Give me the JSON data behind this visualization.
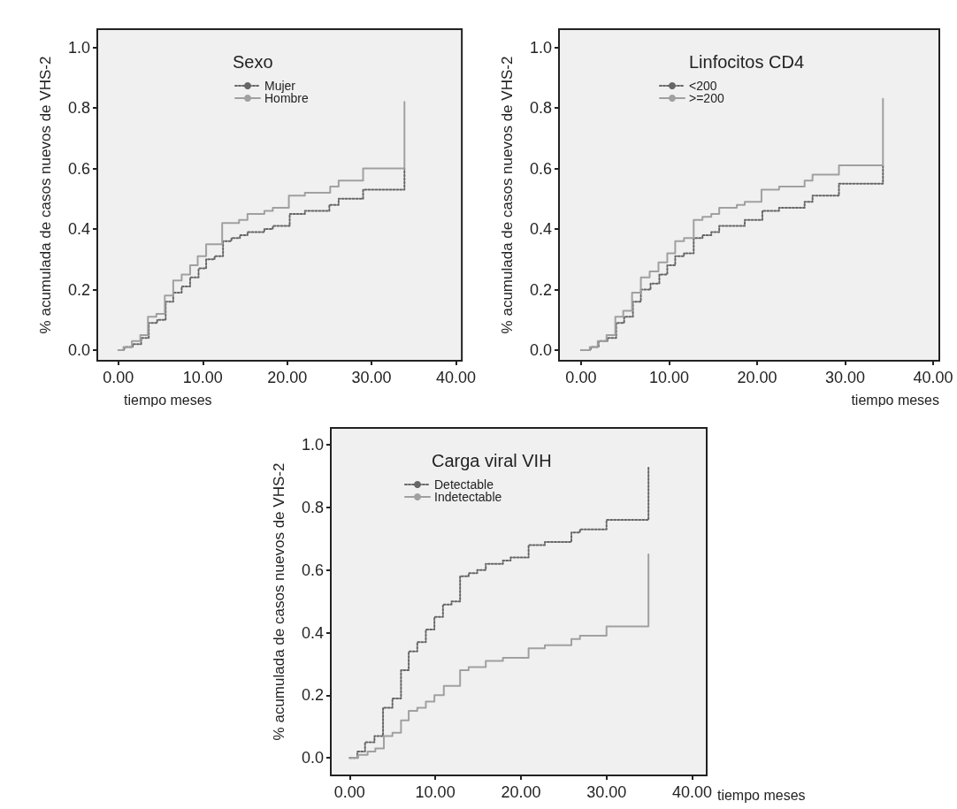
{
  "chart_data": [
    {
      "type": "step",
      "legend_title": "Sexo",
      "xlabel": "tiempo meses",
      "ylabel": "% acumulada de casos nuevos de VHS-2",
      "legend": "top",
      "grid": false,
      "xlim": [
        -2.5,
        40.7
      ],
      "ylim": [
        -0.035,
        1.06
      ],
      "xticks": [
        {
          "value": 0,
          "label": "0.00"
        },
        {
          "value": 10,
          "label": "10.00"
        },
        {
          "value": 20,
          "label": "20.00"
        },
        {
          "value": 30,
          "label": "30.00"
        },
        {
          "value": 40,
          "label": "40.00"
        }
      ],
      "yticks": [
        {
          "value": 0,
          "label": "0.0"
        },
        {
          "value": 0.2,
          "label": "0.2"
        },
        {
          "value": 0.4,
          "label": "0.4"
        },
        {
          "value": 0.6,
          "label": "0.6"
        },
        {
          "value": 0.8,
          "label": "0.8"
        },
        {
          "value": 1,
          "label": "1.0"
        }
      ],
      "series": [
        {
          "name": "Mujer",
          "color": "#666666",
          "line_style": "dotted",
          "x": [
            0,
            0.7,
            1.7,
            2.7,
            3.6,
            4.6,
            5.6,
            6.5,
            7.5,
            8.5,
            9.5,
            10.4,
            11.4,
            12.4,
            13.4,
            14.4,
            15.3,
            17.3,
            18.3,
            20.3,
            22.1,
            25.0,
            26.1,
            29.0,
            33.9,
            33.9
          ],
          "values": [
            0,
            0.01,
            0.02,
            0.04,
            0.09,
            0.1,
            0.16,
            0.19,
            0.21,
            0.24,
            0.27,
            0.3,
            0.31,
            0.36,
            0.37,
            0.38,
            0.39,
            0.4,
            0.41,
            0.45,
            0.46,
            0.48,
            0.5,
            0.53,
            0.53,
            0.6
          ]
        },
        {
          "name": "Hombre",
          "color": "#a0a0a0",
          "line_style": "solid",
          "x": [
            0,
            0.6,
            1.6,
            2.6,
            3.5,
            4.5,
            5.5,
            6.5,
            7.5,
            8.5,
            9.4,
            10.4,
            11.4,
            12.3,
            13.3,
            14.3,
            15.3,
            17.3,
            18.3,
            20.2,
            22.1,
            25.1,
            26.1,
            29.0,
            33.9,
            33.9
          ],
          "values": [
            0,
            0.01,
            0.03,
            0.05,
            0.11,
            0.12,
            0.18,
            0.23,
            0.25,
            0.28,
            0.31,
            0.35,
            0.35,
            0.42,
            0.42,
            0.43,
            0.45,
            0.46,
            0.47,
            0.51,
            0.52,
            0.54,
            0.56,
            0.6,
            0.6,
            0.82
          ]
        }
      ]
    },
    {
      "type": "step",
      "legend_title": "Linfocitos CD4",
      "xlabel": "tiempo meses",
      "ylabel": "% acumulada de casos nuevos de VHS-2",
      "legend": "top",
      "grid": false,
      "xlim": [
        -2.5,
        40.7
      ],
      "ylim": [
        -0.035,
        1.06
      ],
      "xticks": [
        {
          "value": 0,
          "label": "0.00"
        },
        {
          "value": 10,
          "label": "10.00"
        },
        {
          "value": 20,
          "label": "20.00"
        },
        {
          "value": 30,
          "label": "30.00"
        },
        {
          "value": 40,
          "label": "40.00"
        }
      ],
      "yticks": [
        {
          "value": 0,
          "label": "0.0"
        },
        {
          "value": 0.2,
          "label": "0.2"
        },
        {
          "value": 0.4,
          "label": "0.4"
        },
        {
          "value": 0.6,
          "label": "0.6"
        },
        {
          "value": 0.8,
          "label": "0.8"
        },
        {
          "value": 1,
          "label": "1.0"
        }
      ],
      "series": [
        {
          "name": "<200",
          "color": "#666666",
          "line_style": "dotted",
          "x": [
            0,
            1.1,
            2.0,
            3.0,
            4.0,
            4.9,
            5.9,
            6.8,
            7.9,
            8.9,
            9.8,
            10.7,
            11.7,
            12.8,
            13.8,
            14.8,
            15.7,
            17.7,
            18.6,
            20.6,
            22.5,
            25.4,
            26.3,
            29.3,
            34.3,
            34.3
          ],
          "values": [
            0,
            0.01,
            0.03,
            0.04,
            0.09,
            0.11,
            0.16,
            0.2,
            0.22,
            0.25,
            0.28,
            0.31,
            0.32,
            0.37,
            0.38,
            0.39,
            0.41,
            0.41,
            0.43,
            0.46,
            0.47,
            0.49,
            0.51,
            0.55,
            0.55,
            0.61
          ]
        },
        {
          "name": ">=200",
          "color": "#a0a0a0",
          "line_style": "solid",
          "x": [
            0,
            1.0,
            1.9,
            2.9,
            3.9,
            4.8,
            5.8,
            6.8,
            7.8,
            8.8,
            9.8,
            10.7,
            11.7,
            12.8,
            13.8,
            14.8,
            15.7,
            17.7,
            18.6,
            20.5,
            22.5,
            25.4,
            26.3,
            29.3,
            34.3,
            34.3
          ],
          "values": [
            0,
            0.01,
            0.03,
            0.05,
            0.11,
            0.13,
            0.19,
            0.24,
            0.26,
            0.29,
            0.32,
            0.36,
            0.37,
            0.43,
            0.44,
            0.45,
            0.47,
            0.48,
            0.49,
            0.53,
            0.54,
            0.56,
            0.58,
            0.61,
            0.61,
            0.83
          ]
        }
      ]
    },
    {
      "type": "step",
      "legend_title": "Carga viral VIH",
      "xlabel": "tiempo meses",
      "ylabel": "% acumulada de casos nuevos de VHS-2",
      "legend": "top",
      "grid": false,
      "xlim": [
        -2.2,
        41.7
      ],
      "ylim": [
        -0.056,
        1.054
      ],
      "xticks": [
        {
          "value": 0,
          "label": "0.00"
        },
        {
          "value": 10,
          "label": "10.00"
        },
        {
          "value": 20,
          "label": "20.00"
        },
        {
          "value": 30,
          "label": "30.00"
        },
        {
          "value": 40,
          "label": "40.00"
        }
      ],
      "yticks": [
        {
          "value": 0,
          "label": "0.0"
        },
        {
          "value": 0.2,
          "label": "0.2"
        },
        {
          "value": 0.4,
          "label": "0.4"
        },
        {
          "value": 0.6,
          "label": "0.6"
        },
        {
          "value": 0.8,
          "label": "0.8"
        },
        {
          "value": 1,
          "label": "1.0"
        }
      ],
      "series": [
        {
          "name": "Detectable",
          "color": "#666666",
          "line_style": "dotted",
          "x": [
            0,
            0.9,
            1.8,
            2.9,
            3.9,
            5.0,
            6.0,
            6.9,
            7.9,
            8.9,
            9.9,
            10.9,
            11.9,
            12.9,
            13.9,
            14.9,
            15.9,
            17.9,
            18.8,
            20.9,
            22.8,
            25.9,
            26.9,
            30.0,
            34.9,
            34.9
          ],
          "values": [
            0,
            0.02,
            0.05,
            0.07,
            0.16,
            0.19,
            0.28,
            0.34,
            0.37,
            0.41,
            0.45,
            0.49,
            0.5,
            0.58,
            0.59,
            0.6,
            0.62,
            0.63,
            0.64,
            0.68,
            0.69,
            0.72,
            0.73,
            0.76,
            0.76,
            0.93
          ]
        },
        {
          "name": "Indetectable",
          "color": "#a0a0a0",
          "line_style": "solid",
          "x": [
            0,
            1.0,
            2.1,
            3.0,
            4.0,
            5.0,
            6.0,
            6.9,
            7.9,
            8.9,
            9.9,
            11.0,
            11.9,
            12.9,
            13.9,
            14.9,
            15.9,
            17.9,
            18.8,
            20.9,
            22.8,
            25.9,
            26.9,
            30.0,
            34.9,
            34.9
          ],
          "values": [
            0,
            0.01,
            0.02,
            0.03,
            0.07,
            0.08,
            0.12,
            0.15,
            0.16,
            0.18,
            0.2,
            0.23,
            0.23,
            0.28,
            0.29,
            0.29,
            0.31,
            0.32,
            0.32,
            0.35,
            0.36,
            0.38,
            0.39,
            0.42,
            0.42,
            0.65
          ]
        }
      ]
    }
  ]
}
